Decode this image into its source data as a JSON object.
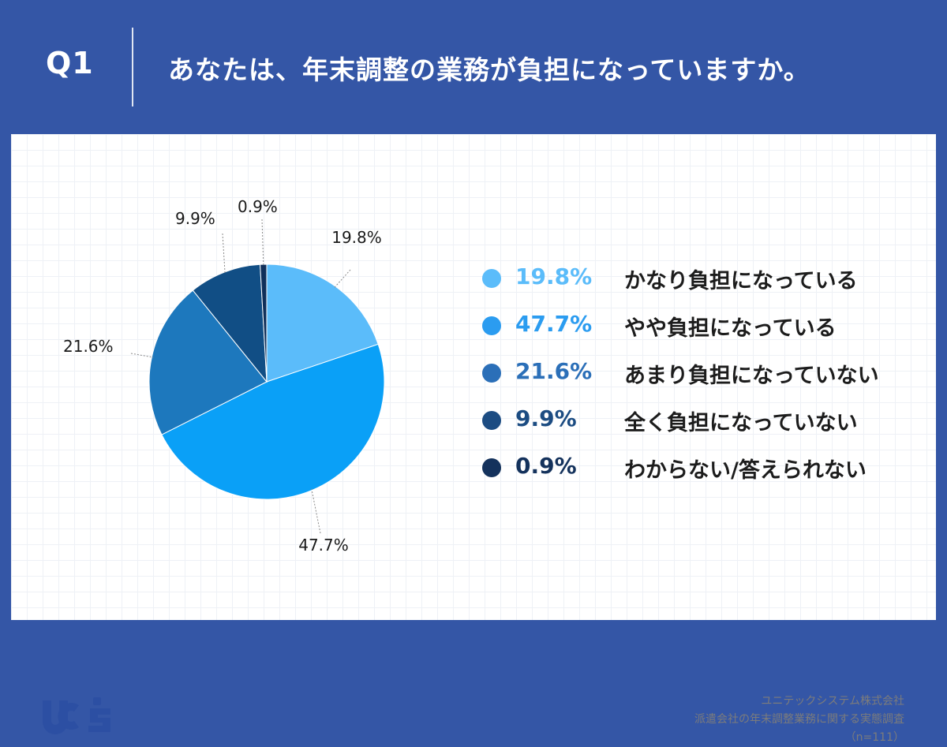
{
  "header": {
    "q_label": "Q1",
    "question": "あなたは、年末調整の業務が負担になっていますか。"
  },
  "chart_data": {
    "type": "pie",
    "slices": [
      {
        "label": "かなり負担になっている",
        "value": 19.8,
        "value_text": "19.8%",
        "color": "#5bbcfa"
      },
      {
        "label": "やや負担になっている",
        "value": 47.7,
        "value_text": "47.7%",
        "color": "#0aa0f7"
      },
      {
        "label": "あまり負担になっていない",
        "value": 21.6,
        "value_text": "21.6%",
        "color": "#1d78bd"
      },
      {
        "label": "全く負担になっていない",
        "value": 9.9,
        "value_text": "9.9%",
        "color": "#114e85"
      },
      {
        "label": "わからない/答えられない",
        "value": 0.9,
        "value_text": "0.9%",
        "color": "#0f2f5a"
      }
    ],
    "legend_placement": "right"
  },
  "colors": {
    "background": "#3456a6",
    "panel": "#ffffff",
    "legend_value_colors": [
      "#5bbcfa",
      "#2b9cf0",
      "#2b6fb8",
      "#1c4c82",
      "#14325c"
    ]
  },
  "logo": {
    "text": "UCS",
    "color": "#2c4fa3"
  },
  "source": {
    "company": "ユニテックシステム株式会社",
    "survey": "派遣会社の年末調整業務に関する実態調査",
    "sample": "（n=111）"
  }
}
